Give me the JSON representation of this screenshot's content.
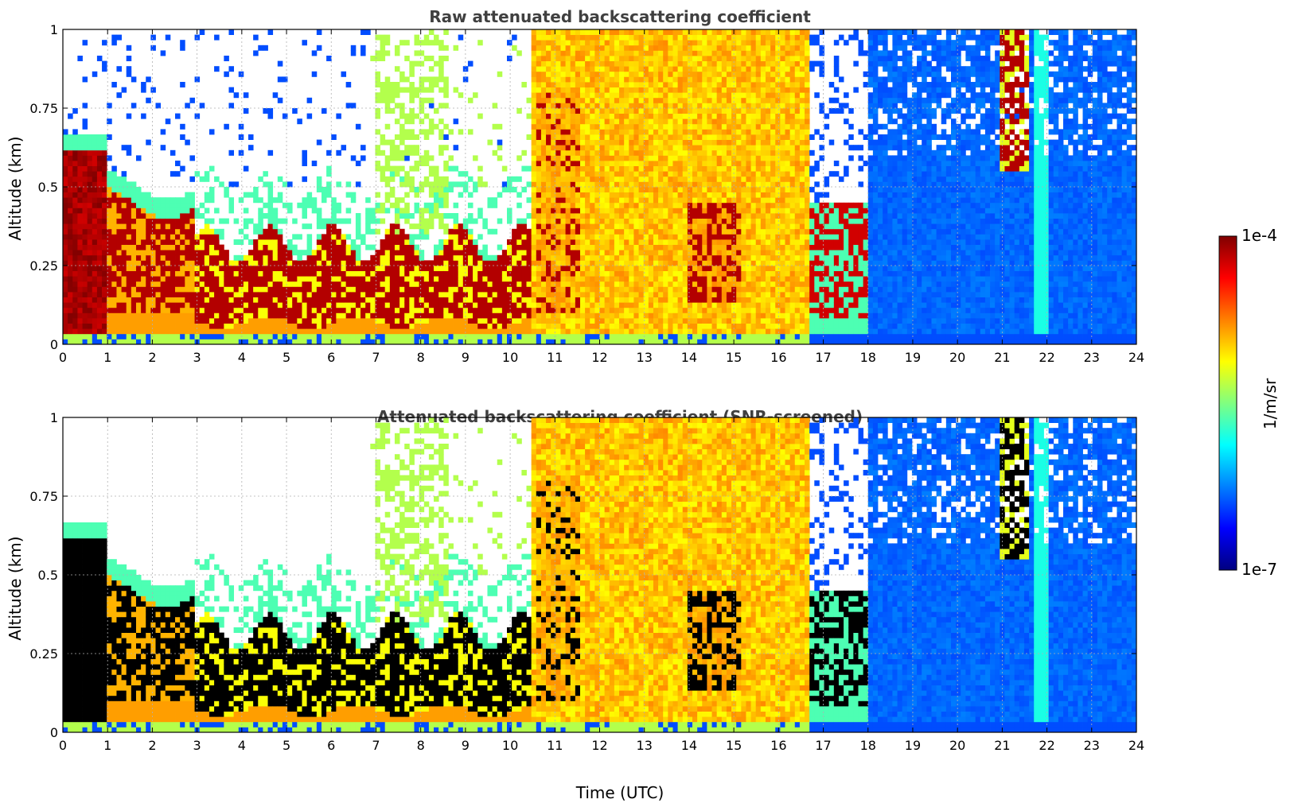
{
  "chart_data": [
    {
      "type": "heatmap",
      "title": "Raw attenuated backscattering coefficient",
      "xlabel": "",
      "ylabel": "Altitude (km)",
      "xlim": [
        0,
        24
      ],
      "ylim": [
        0,
        1
      ],
      "xticks": [
        "0",
        "1",
        "2",
        "3",
        "4",
        "5",
        "6",
        "7",
        "8",
        "9",
        "10",
        "11",
        "12",
        "13",
        "14",
        "15",
        "16",
        "17",
        "18",
        "19",
        "20",
        "21",
        "22",
        "23",
        "24"
      ],
      "yticks": [
        "0",
        "0.25",
        "0.5",
        "0.75",
        "1"
      ],
      "grid": true,
      "colormap": "jet",
      "color_scale": "log",
      "clim": [
        "1e-7",
        "1e-4"
      ],
      "screened": false,
      "features": [
        {
          "x_range": [
            0,
            1.0
          ],
          "y_range": [
            0,
            0.62
          ],
          "level": "high"
        },
        {
          "x_range": [
            1.0,
            3.0
          ],
          "y_range": [
            0.15,
            0.55
          ],
          "level": "high",
          "note": "rising layer"
        },
        {
          "x_range": [
            3.0,
            10.5
          ],
          "y_range": [
            0.07,
            0.35
          ],
          "level": "high"
        },
        {
          "x_range": [
            10.5,
            16.7
          ],
          "y_range": [
            0,
            1
          ],
          "level": "medium"
        },
        {
          "x_range": [
            16.7,
            18.0
          ],
          "y_range": [
            0.08,
            0.45
          ],
          "level": "high"
        },
        {
          "x_range": [
            18.0,
            24
          ],
          "y_range": [
            0,
            1
          ],
          "level": "low"
        },
        {
          "x_range": [
            20.9,
            21.6
          ],
          "y_range": [
            0.55,
            1
          ],
          "level": "high"
        }
      ]
    },
    {
      "type": "heatmap",
      "title": "Attenuated backscattering coefficient (SNR-screened)",
      "xlabel": "Time (UTC)",
      "ylabel": "Altitude (km)",
      "xlim": [
        0,
        24
      ],
      "ylim": [
        0,
        1
      ],
      "xticks": [
        "0",
        "1",
        "2",
        "3",
        "4",
        "5",
        "6",
        "7",
        "8",
        "9",
        "10",
        "11",
        "12",
        "13",
        "14",
        "15",
        "16",
        "17",
        "18",
        "19",
        "20",
        "21",
        "22",
        "23",
        "24"
      ],
      "yticks": [
        "0",
        "0.25",
        "0.5",
        "0.75",
        "1"
      ],
      "grid": true,
      "colormap": "jet",
      "color_scale": "log",
      "clim": [
        "1e-7",
        "1e-4"
      ],
      "screened": true,
      "features": [
        {
          "x_range": [
            0,
            1.0
          ],
          "y_range": [
            0,
            0.62
          ],
          "level": "saturated"
        },
        {
          "x_range": [
            1.0,
            3.0
          ],
          "y_range": [
            0.15,
            0.55
          ],
          "level": "saturated"
        },
        {
          "x_range": [
            3.0,
            10.5
          ],
          "y_range": [
            0.07,
            0.35
          ],
          "level": "saturated"
        },
        {
          "x_range": [
            10.5,
            16.7
          ],
          "y_range": [
            0,
            1
          ],
          "level": "medium"
        },
        {
          "x_range": [
            16.7,
            18.0
          ],
          "y_range": [
            0.08,
            0.45
          ],
          "level": "saturated"
        },
        {
          "x_range": [
            18.0,
            24
          ],
          "y_range": [
            0,
            1
          ],
          "level": "low"
        },
        {
          "x_range": [
            20.9,
            21.6
          ],
          "y_range": [
            0.55,
            1
          ],
          "level": "saturated"
        }
      ]
    }
  ],
  "colorbar": {
    "max_label": "1e-4",
    "min_label": "1e-7",
    "unit_label": "1/m/sr",
    "colors": [
      "#000080",
      "#0000ff",
      "#0080ff",
      "#00ffff",
      "#80ff80",
      "#ffff00",
      "#ff8000",
      "#ff0000",
      "#800000"
    ]
  }
}
